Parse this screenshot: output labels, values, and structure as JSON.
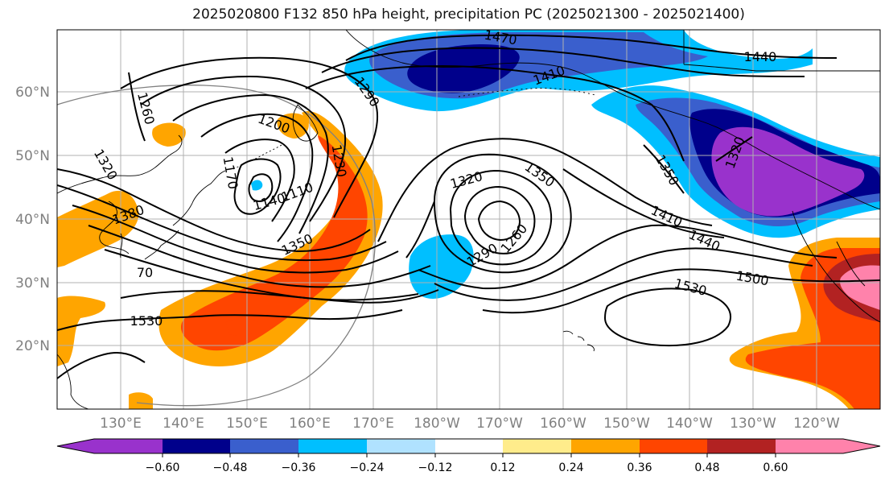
{
  "title": "2025020800 F132 850 hPa height, precipitation PC (2025021300 - 2025021400)",
  "colors": {
    "n060": "#9932cc",
    "n048": "#00008b",
    "n036": "#3a5fcd",
    "n024": "#00bfff",
    "n012": "#b0e2ff",
    "neutral": "#ffffff",
    "p012": "#ffec8b",
    "p024": "#ffa500",
    "p036": "#ff4500",
    "p048": "#b22222",
    "p060": "#ff82ab",
    "contour": "#000000",
    "grid": "#b0b0b0",
    "coast": "#000000"
  },
  "axes": {
    "lat_labels": [
      "60°N",
      "50°N",
      "40°N",
      "30°N",
      "20°N"
    ],
    "lon_labels": [
      "130°E",
      "140°E",
      "150°E",
      "160°E",
      "170°E",
      "180°W",
      "170°W",
      "160°W",
      "150°W",
      "140°W",
      "130°W",
      "120°W"
    ]
  },
  "contour_labels": [
    "1470",
    "1440",
    "1410",
    "1290",
    "1260",
    "1200",
    "1170",
    "1230",
    "1320",
    "1350",
    "1380",
    "1140",
    "1110",
    "1350",
    "1320",
    "1350",
    "1410",
    "1440",
    "1290",
    "1260",
    "1500",
    "1530",
    "1530",
    "1320",
    "70"
  ],
  "colorbar": {
    "ticks": [
      "−0.60",
      "−0.48",
      "−0.36",
      "−0.24",
      "−0.12",
      "0.12",
      "0.24",
      "0.36",
      "0.48",
      "0.60"
    ]
  }
}
